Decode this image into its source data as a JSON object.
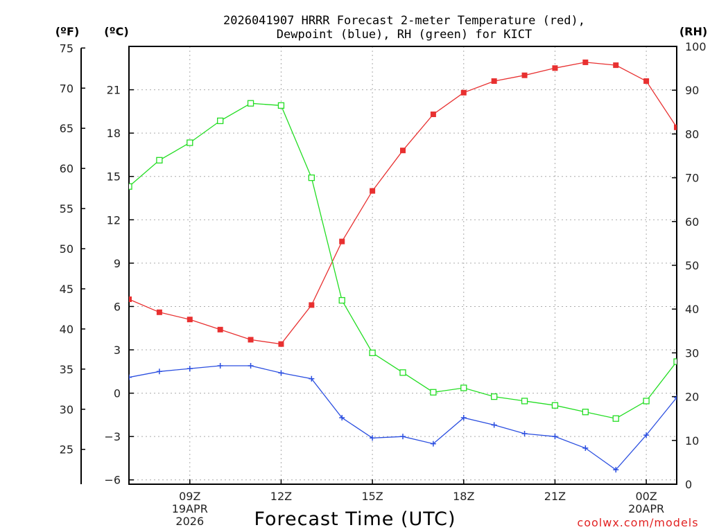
{
  "chart_data": {
    "type": "line",
    "title": [
      "2026041907 HRRR Forecast 2-meter Temperature (red),",
      "Dewpoint (blue), RH (green) for KICT"
    ],
    "xlabel": "Forecast Time (UTC)",
    "credit": "coolwx.com/models",
    "axes": {
      "fahrenheit": {
        "unit_label": "(ºF)",
        "ticks": [
          25,
          30,
          35,
          40,
          45,
          50,
          55,
          60,
          65,
          70,
          75
        ]
      },
      "celsius": {
        "unit_label": "(ºC)",
        "ylim": [
          -6.3,
          24.0
        ],
        "ticks": [
          -6,
          -3,
          0,
          3,
          6,
          9,
          12,
          15,
          18,
          21
        ]
      },
      "rh": {
        "unit_label": "(RH)",
        "ylim": [
          0,
          100
        ],
        "ticks": [
          0,
          10,
          20,
          30,
          40,
          50,
          60,
          70,
          80,
          90,
          100
        ]
      }
    },
    "x_hours": [
      7,
      8,
      9,
      10,
      11,
      12,
      13,
      14,
      15,
      16,
      17,
      18,
      19,
      20,
      21,
      22,
      23,
      24,
      25
    ],
    "xlim": [
      7,
      25
    ],
    "x_ticks": [
      {
        "hour": 9,
        "lines": [
          "09Z",
          "19APR",
          "2026"
        ]
      },
      {
        "hour": 12,
        "lines": [
          "12Z"
        ]
      },
      {
        "hour": 15,
        "lines": [
          "15Z"
        ]
      },
      {
        "hour": 18,
        "lines": [
          "18Z"
        ]
      },
      {
        "hour": 21,
        "lines": [
          "21Z"
        ]
      },
      {
        "hour": 24,
        "lines": [
          "00Z",
          "20APR"
        ]
      }
    ],
    "series": [
      {
        "name": "Temperature",
        "unit": "C",
        "color": "#e83030",
        "marker": "filled-square",
        "values": [
          6.5,
          5.6,
          5.1,
          4.4,
          3.7,
          3.4,
          6.1,
          10.5,
          14.0,
          16.8,
          19.3,
          20.8,
          21.6,
          22.0,
          22.5,
          22.9,
          22.7,
          21.6,
          18.4
        ]
      },
      {
        "name": "Dewpoint",
        "unit": "C",
        "color": "#2a4ee0",
        "marker": "plus",
        "values": [
          1.1,
          1.5,
          1.7,
          1.9,
          1.9,
          1.4,
          1.0,
          -1.7,
          -3.1,
          -3.0,
          -3.5,
          -1.7,
          -2.2,
          -2.8,
          -3.0,
          -3.8,
          -5.3,
          -2.9,
          -0.3
        ]
      },
      {
        "name": "Relative Humidity",
        "unit": "RH",
        "color": "#22dd22",
        "marker": "open-square",
        "values": [
          68,
          74,
          78,
          83,
          87,
          86.5,
          70,
          42,
          30,
          25.5,
          21,
          22,
          20,
          19,
          18,
          16.5,
          15,
          19,
          28
        ]
      }
    ]
  }
}
